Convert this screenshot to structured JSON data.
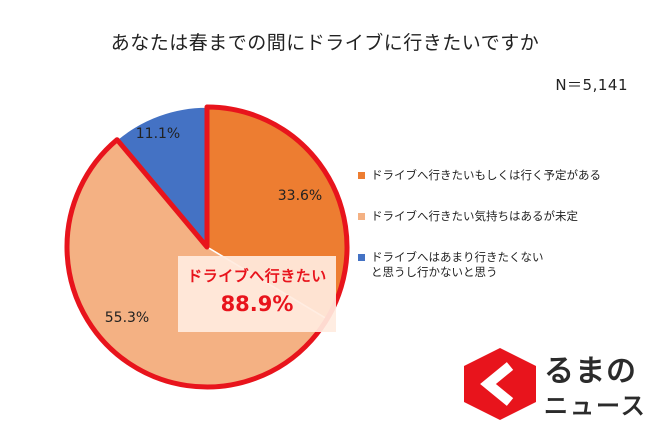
{
  "title": "あなたは春までの間にドライブに行きたいですか",
  "sample_size": "N＝5,141",
  "chart_data": {
    "type": "pie",
    "start_angle_deg": 0,
    "direction": "clockwise",
    "slices": [
      {
        "label": "ドライブへ行きたいもしくは行く予定がある",
        "value": 33.6,
        "value_label": "33.6%",
        "color": "#ED7D31"
      },
      {
        "label": "ドライブへ行きたい気持ちはあるが未定",
        "value": 55.3,
        "value_label": "55.3%",
        "color": "#F4B183"
      },
      {
        "label": "ドライブへはあまり行きたくないと思うし行かないと思う",
        "value": 11.1,
        "value_label": "11.1%",
        "color": "#4472C4"
      }
    ],
    "highlight": {
      "label": "ドライブへ行きたい",
      "value": 88.9,
      "value_label": "88.9%",
      "outline_color": "#E8141C"
    },
    "legend_position": "right"
  },
  "legend": [
    {
      "text": "ドライブへ行きたいもしくは行く予定がある",
      "color": "#ED7D31"
    },
    {
      "text": "ドライブへ行きたい気持ちはあるが未定",
      "color": "#F4B183"
    },
    {
      "text": "ドライブへはあまり行きたくないと思うし行かないと思う",
      "color": "#4472C4"
    }
  ],
  "logo": {
    "line1": "るまの",
    "line2": "ニュース",
    "color": "#E8141C"
  }
}
